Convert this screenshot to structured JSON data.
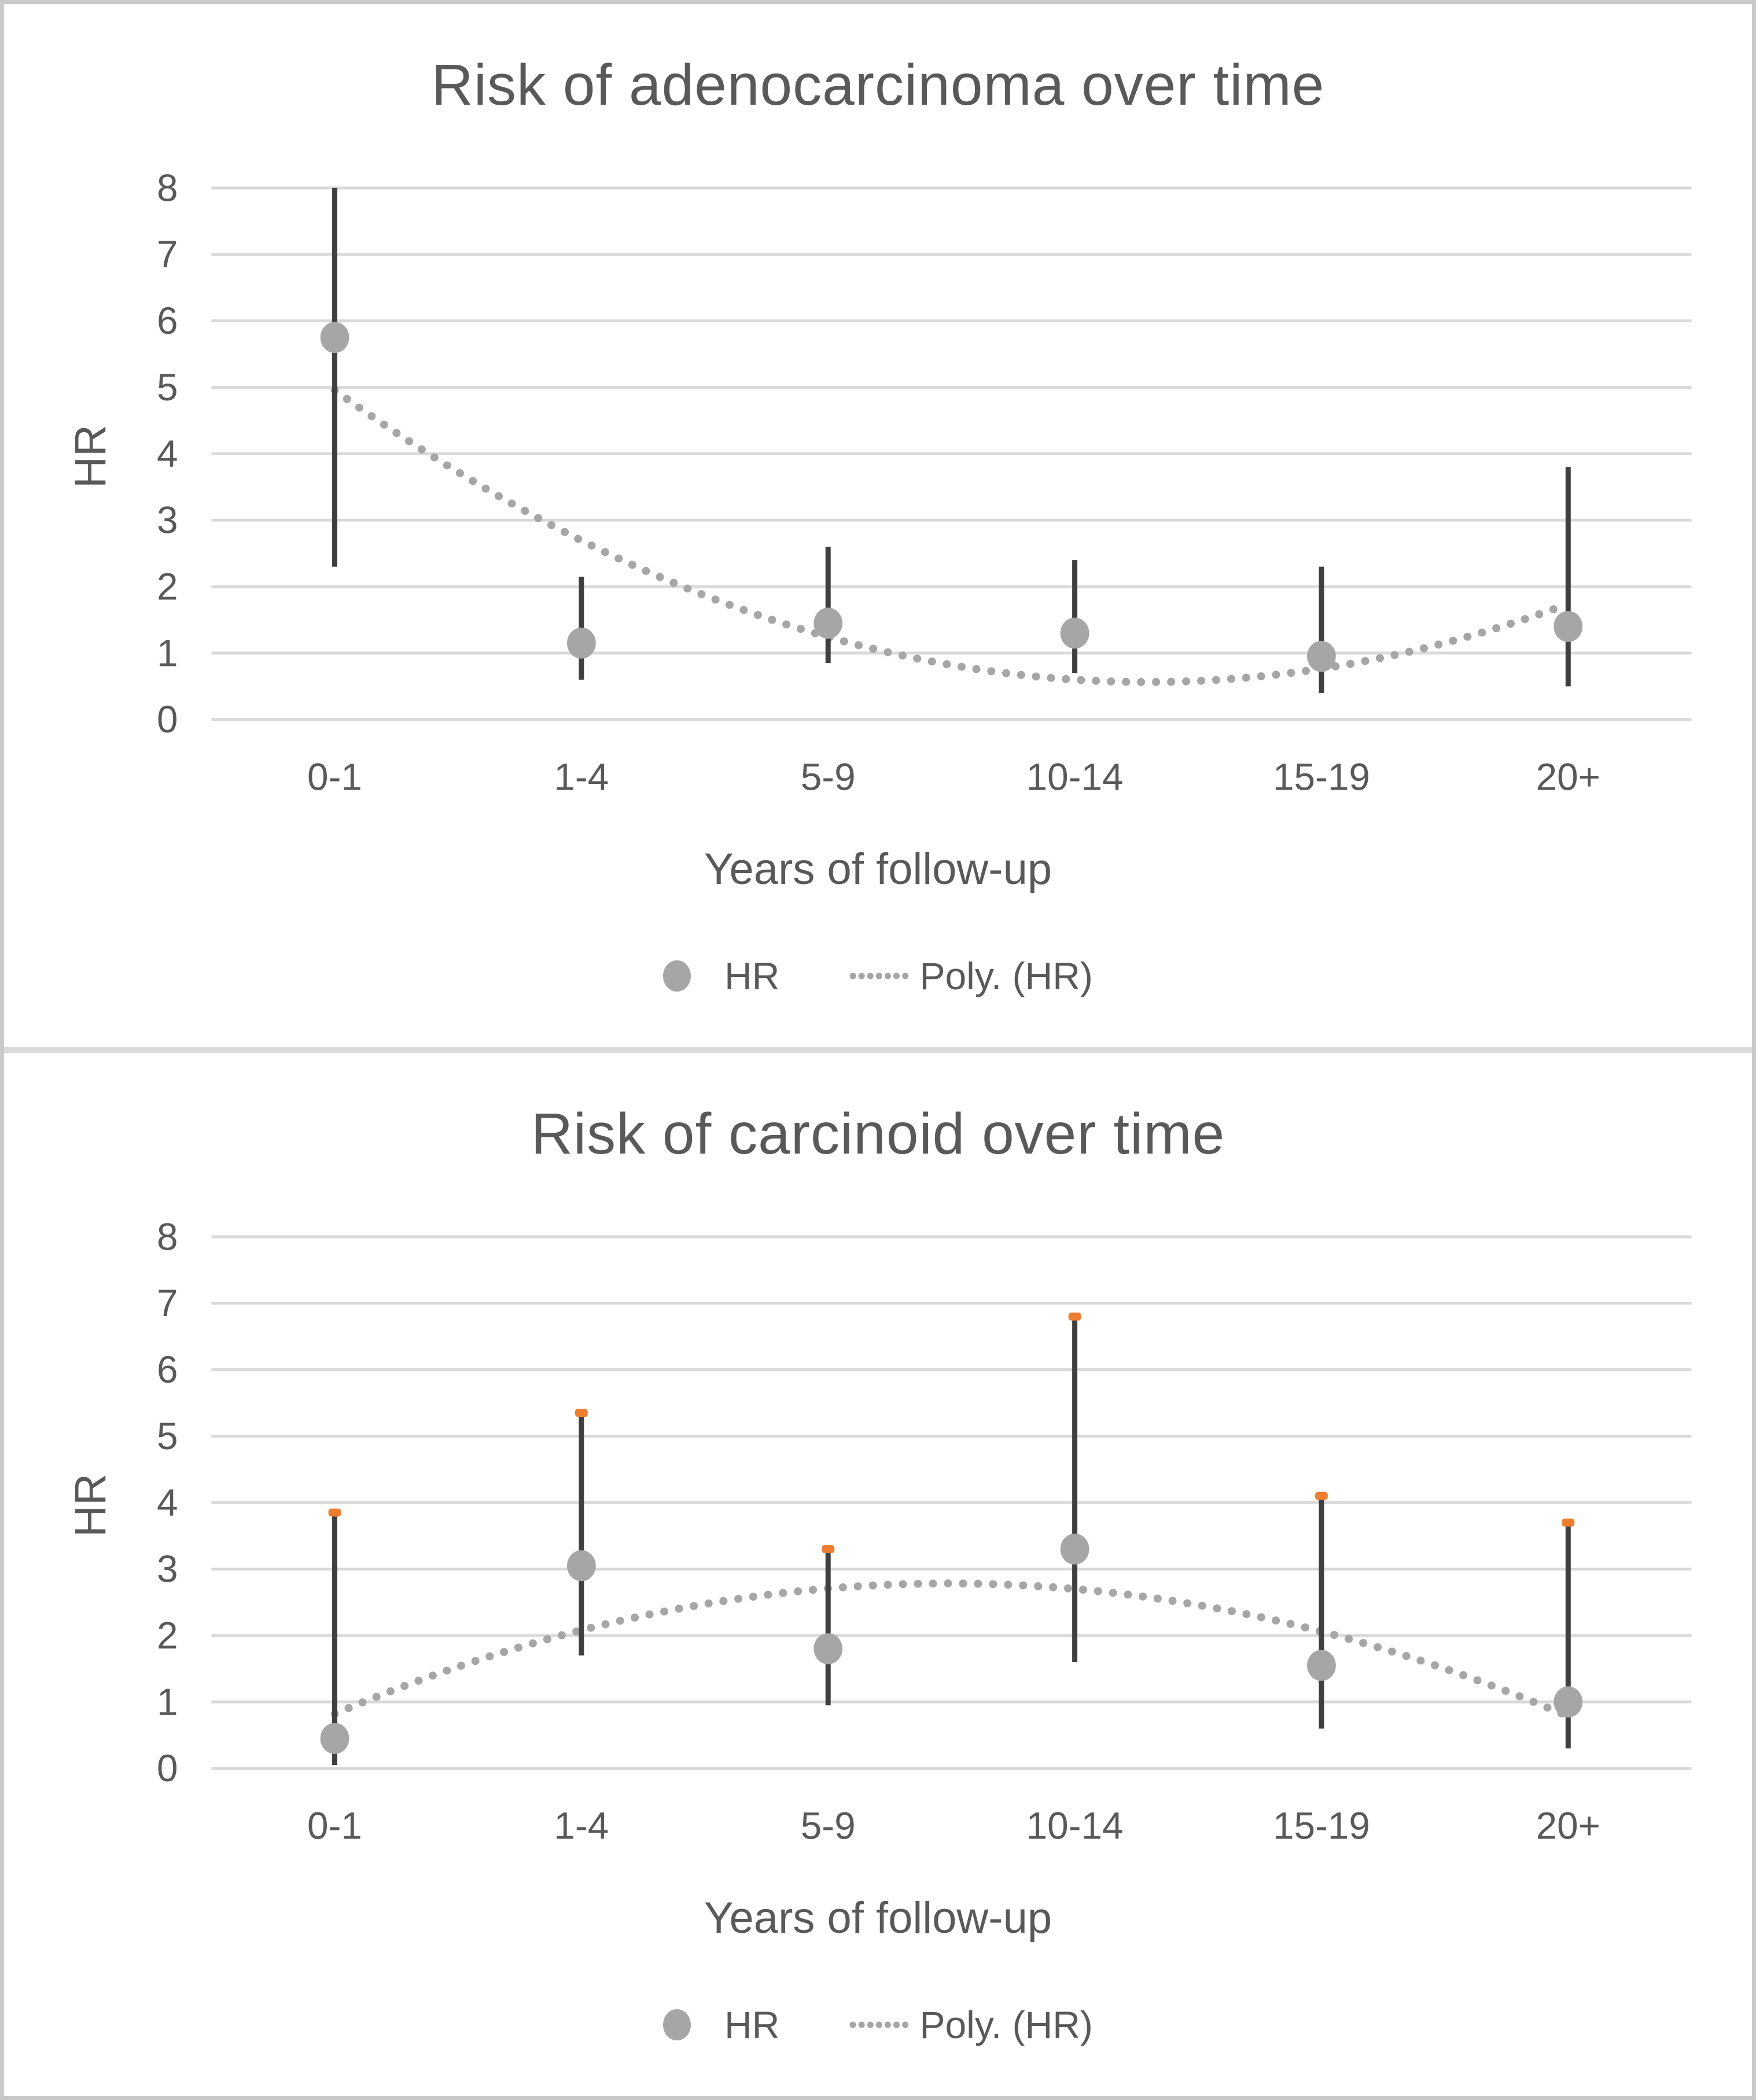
{
  "page": {
    "background": "#ffffff",
    "border_color": "#c9c9c9",
    "divider_color": "#d9d9d9"
  },
  "colors": {
    "text": "#595959",
    "gridline": "#d9d9d9",
    "error_bar": "#3f3f3f",
    "marker": "#a6a6a6",
    "trend": "#a6a6a6",
    "cap": "#ed7d31"
  },
  "legend": {
    "hr_label": "HR",
    "poly_label": "Poly. (HR)"
  },
  "chart_data": [
    {
      "type": "scatter",
      "title": "Risk of adenocarcinoma over time",
      "xlabel": "Years of follow-up",
      "ylabel": "HR",
      "categories": [
        "0-1",
        "1-4",
        "5-9",
        "10-14",
        "15-19",
        "20+"
      ],
      "yticks": [
        0,
        1,
        2,
        3,
        4,
        5,
        6,
        7,
        8
      ],
      "ylim": [
        0,
        8
      ],
      "grid": true,
      "legend_position": "bottom",
      "series": [
        {
          "name": "HR",
          "type": "scatter_with_error_bars",
          "values": [
            5.75,
            1.15,
            1.45,
            1.3,
            0.95,
            1.4
          ],
          "ci_low": [
            2.3,
            0.6,
            0.85,
            0.7,
            0.4,
            0.5
          ],
          "ci_high": [
            8.0,
            2.15,
            2.6,
            2.4,
            2.3,
            3.8
          ],
          "error_cap_top": false
        },
        {
          "name": "Poly. (HR)",
          "type": "poly2_trendline_dotted"
        }
      ]
    },
    {
      "type": "scatter",
      "title": "Risk of carcinoid over time",
      "xlabel": "Years of follow-up",
      "ylabel": "HR",
      "categories": [
        "0-1",
        "1-4",
        "5-9",
        "10-14",
        "15-19",
        "20+"
      ],
      "yticks": [
        0,
        1,
        2,
        3,
        4,
        5,
        6,
        7,
        8
      ],
      "ylim": [
        0,
        8
      ],
      "grid": true,
      "legend_position": "bottom",
      "series": [
        {
          "name": "HR",
          "type": "scatter_with_error_bars",
          "values": [
            0.45,
            3.05,
            1.8,
            3.3,
            1.55,
            1.0
          ],
          "ci_low": [
            0.05,
            1.7,
            0.95,
            1.6,
            0.6,
            0.3
          ],
          "ci_high": [
            3.85,
            5.35,
            3.3,
            6.8,
            4.1,
            3.7
          ],
          "error_cap_top": true
        },
        {
          "name": "Poly. (HR)",
          "type": "poly2_trendline_dotted"
        }
      ]
    }
  ]
}
